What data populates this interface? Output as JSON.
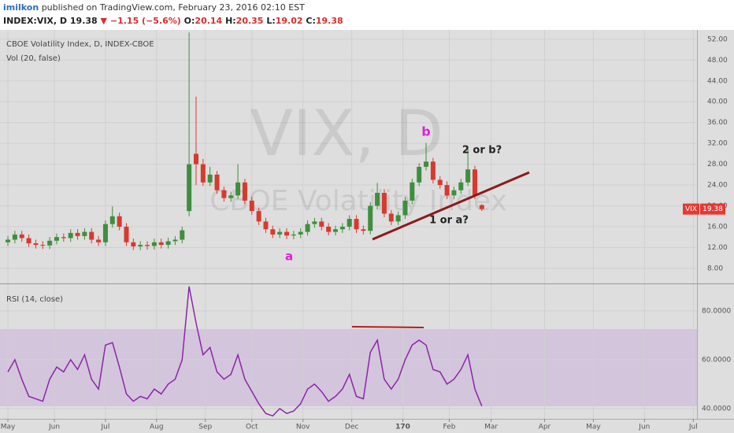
{
  "header": {
    "author": "imilkon",
    "published": "published on TradingView.com, February 23, 2016 02:10 EST",
    "symbol": "INDEX:VIX, D",
    "arrow": "▼",
    "change": "−1.15 (−5.6%)",
    "ohlc_labels": [
      "O:",
      "H:",
      "L:",
      "C:"
    ]
  },
  "chart_data": [
    {
      "type": "candlestick",
      "title": "CBOE Volatility Index, D, INDEX-CBOE",
      "subtitle": "Vol (20, false)",
      "watermark": "VIX, D",
      "watermark_sub": "CBOE Volatility Index",
      "tag": "VIX",
      "up_color": "#3e8e3e",
      "down_color": "#d63a2f",
      "grid": true,
      "x": [
        0,
        3,
        6,
        9,
        12,
        15,
        18,
        21,
        24,
        27,
        30,
        33,
        36,
        39,
        42,
        45,
        48,
        51,
        54,
        57,
        60,
        63,
        66,
        69,
        72,
        75,
        78,
        81,
        84,
        87,
        90,
        93,
        96,
        99,
        102,
        105,
        108,
        111,
        114,
        117,
        120,
        123,
        126,
        129,
        132,
        135,
        138,
        141,
        144,
        147,
        150,
        153,
        156,
        159,
        162,
        165,
        168,
        171,
        174,
        177,
        180,
        183,
        186,
        189,
        192,
        195,
        198,
        201,
        204
      ],
      "open": [
        13.0,
        13.5,
        14.5,
        13.8,
        12.8,
        12.5,
        12.4,
        13.3,
        14.0,
        13.8,
        14.8,
        14.2,
        15.0,
        13.5,
        13.0,
        16.5,
        18.0,
        16.0,
        13.0,
        12.2,
        12.5,
        12.3,
        13.0,
        12.5,
        13.2,
        13.5,
        19.0,
        30.0,
        28.0,
        24.5,
        26.0,
        23.0,
        21.5,
        22.0,
        24.5,
        21.0,
        19.0,
        17.0,
        15.5,
        14.5,
        15.0,
        14.3,
        14.5,
        15.0,
        16.5,
        17.0,
        16.0,
        15.0,
        15.5,
        16.0,
        17.5,
        15.5,
        15.2,
        20.0,
        22.5,
        18.5,
        17.0,
        18.2,
        21.0,
        24.5,
        27.5,
        28.5,
        25.0,
        24.0,
        22.0,
        23.0,
        24.5,
        27.0,
        20.14
      ],
      "high": [
        14.2,
        15.2,
        15.2,
        14.5,
        13.5,
        13.2,
        14.0,
        14.7,
        14.7,
        15.5,
        15.5,
        15.7,
        15.7,
        14.2,
        17.2,
        19.9,
        18.7,
        16.7,
        13.7,
        13.2,
        13.2,
        13.7,
        13.7,
        13.9,
        14.2,
        16.0,
        53.3,
        41.0,
        29.0,
        27.5,
        26.7,
        23.7,
        22.7,
        28.0,
        25.2,
        21.7,
        19.7,
        17.7,
        16.2,
        15.7,
        15.7,
        15.2,
        15.7,
        17.2,
        17.7,
        17.7,
        16.7,
        16.2,
        16.7,
        18.2,
        18.2,
        16.2,
        20.7,
        24.4,
        23.2,
        19.2,
        18.9,
        21.7,
        25.2,
        28.2,
        32.1,
        29.2,
        25.7,
        24.7,
        23.7,
        25.2,
        30.9,
        27.7,
        20.35
      ],
      "low": [
        12.3,
        12.8,
        13.1,
        12.1,
        11.8,
        11.7,
        11.7,
        12.6,
        13.1,
        13.1,
        13.5,
        13.5,
        12.8,
        12.3,
        12.3,
        15.8,
        15.3,
        12.3,
        11.5,
        11.5,
        11.6,
        11.6,
        11.8,
        11.8,
        12.5,
        12.8,
        18.0,
        24.0,
        23.8,
        23.8,
        22.3,
        20.8,
        20.8,
        21.3,
        20.3,
        18.3,
        16.3,
        14.8,
        13.8,
        13.8,
        13.6,
        13.6,
        13.8,
        14.3,
        15.8,
        15.3,
        14.3,
        14.3,
        14.8,
        15.3,
        14.8,
        14.5,
        14.5,
        19.3,
        17.8,
        16.3,
        16.3,
        17.5,
        20.3,
        23.8,
        26.8,
        24.3,
        23.3,
        21.3,
        21.3,
        22.3,
        23.8,
        21.3,
        19.02
      ],
      "close": [
        13.5,
        14.5,
        13.8,
        12.8,
        12.5,
        12.4,
        13.3,
        14.0,
        13.8,
        14.8,
        14.2,
        15.0,
        13.5,
        13.0,
        16.5,
        18.0,
        16.0,
        13.0,
        12.2,
        12.5,
        12.3,
        13.0,
        12.5,
        13.2,
        13.5,
        15.3,
        28.0,
        28.0,
        24.5,
        26.0,
        23.0,
        21.5,
        22.0,
        24.5,
        21.0,
        19.0,
        17.0,
        15.5,
        14.5,
        15.0,
        14.3,
        14.5,
        15.0,
        16.5,
        17.0,
        16.0,
        15.0,
        15.5,
        16.0,
        17.5,
        15.5,
        15.2,
        20.0,
        22.5,
        18.5,
        17.0,
        18.2,
        21.0,
        24.5,
        27.5,
        28.5,
        25.0,
        24.0,
        22.0,
        23.0,
        24.5,
        27.0,
        22.0,
        19.38
      ],
      "xlim": [
        -3.4,
        296.6
      ],
      "xticks": [
        {
          "value": 0,
          "label": "May"
        },
        {
          "value": 20,
          "label": "Jun"
        },
        {
          "value": 42,
          "label": "Jul"
        },
        {
          "value": 64,
          "label": "Aug"
        },
        {
          "value": 85,
          "label": "Sep"
        },
        {
          "value": 105,
          "label": "Oct"
        },
        {
          "value": 127,
          "label": "Nov"
        },
        {
          "value": 148,
          "label": "Dec"
        },
        170,
        {
          "value": 190,
          "label": "Feb"
        },
        {
          "value": 208,
          "label": "Mar"
        },
        {
          "value": 231,
          "label": "Apr"
        },
        {
          "value": 252,
          "label": "May"
        },
        {
          "value": 274,
          "label": "Jun"
        },
        {
          "value": 295,
          "label": "Jul"
        }
      ],
      "ylim": [
        5.1,
        53.8
      ],
      "yticks": [
        {
          "value": 8,
          "label": "8.00"
        },
        {
          "value": 12,
          "label": "12.00"
        },
        {
          "value": 16,
          "label": "16.00"
        },
        {
          "value": 20,
          "label": "20.00"
        },
        {
          "value": 24,
          "label": "24.00"
        },
        {
          "value": 28,
          "label": "28.00"
        },
        {
          "value": 32,
          "label": "32.00"
        },
        {
          "value": 36,
          "label": "36.00"
        },
        {
          "value": 40,
          "label": "40.00"
        },
        {
          "value": 44,
          "label": "44.00"
        },
        {
          "value": 48,
          "label": "48.00"
        },
        {
          "value": 52,
          "label": "52.00"
        }
      ],
      "annotations": [
        "a",
        "b",
        "2 or b?",
        "1 or a?"
      ]
    },
    {
      "type": "line",
      "title": "RSI (14, close)",
      "color": "#8e24aa",
      "values": [
        55,
        60,
        52,
        45,
        44,
        43,
        52,
        57,
        55,
        60,
        56,
        62,
        52,
        48,
        66,
        67,
        57,
        46,
        43,
        45,
        44,
        48,
        46,
        50,
        52,
        60,
        90,
        75,
        62,
        65,
        55,
        52,
        54,
        62,
        52,
        47,
        42,
        38,
        37,
        40,
        38,
        39,
        42,
        48,
        50,
        47,
        43,
        45,
        48,
        54,
        45,
        44,
        63,
        68,
        52,
        48,
        52,
        60,
        66,
        68,
        66,
        56,
        55,
        50,
        52,
        56,
        62,
        48,
        41
      ],
      "ylim": [
        35.8,
        90.6
      ],
      "yticks": [
        {
          "value": 40,
          "label": "40.0000"
        },
        {
          "value": 60,
          "label": "60.0000"
        },
        {
          "value": 80,
          "label": "80.0000"
        }
      ]
    }
  ]
}
